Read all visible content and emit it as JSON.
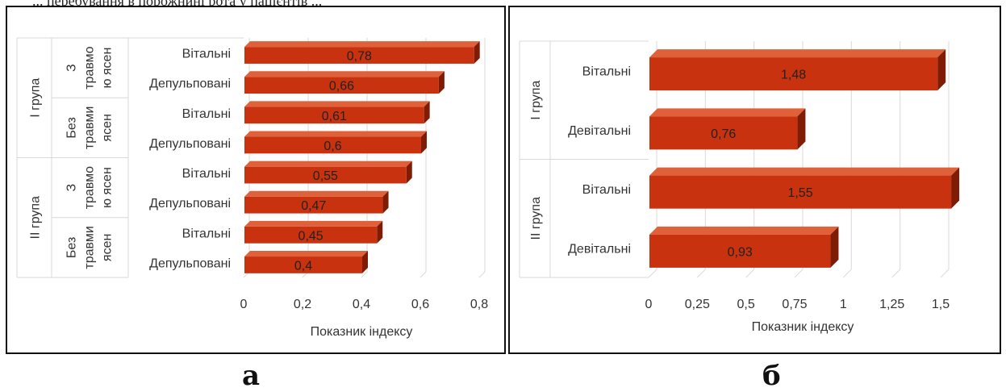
{
  "page": {
    "top_text": "... перебування в порожнині рота у пацієнтів ...",
    "panel_a_label": "а",
    "panel_b_label": "б"
  },
  "colors": {
    "bar_front": "#c8320e",
    "bar_top": "#e0603a",
    "bar_side": "#7e1c06",
    "grid": "#d9d9d9",
    "text": "#333333"
  },
  "chart_data": [
    {
      "id": "a",
      "type": "bar",
      "orientation": "horizontal",
      "title": "",
      "xlabel": "Показник індексу",
      "ylabel": "",
      "xlim": [
        0,
        0.8
      ],
      "xticks": [
        0,
        0.2,
        0.4,
        0.6,
        0.8
      ],
      "xtick_labels": [
        "0",
        "0,2",
        "0,4",
        "0,6",
        "0,8"
      ],
      "grid": true,
      "groups": [
        {
          "name": "I група",
          "subgroups": [
            {
              "name": "З травмою ясен",
              "lines": [
                "З",
                "травмо",
                "ю ясен"
              ],
              "bars": [
                {
                  "category": "Вітальні",
                  "value": 0.78,
                  "label": "0,78"
                },
                {
                  "category": "Депульповані",
                  "value": 0.66,
                  "label": "0,66"
                }
              ]
            },
            {
              "name": "Без травми ясен",
              "lines": [
                "Без",
                "травми",
                "ясен"
              ],
              "bars": [
                {
                  "category": "Вітальні",
                  "value": 0.61,
                  "label": "0,61"
                },
                {
                  "category": "Депульповані",
                  "value": 0.6,
                  "label": "0,6"
                }
              ]
            }
          ]
        },
        {
          "name": "II група",
          "subgroups": [
            {
              "name": "З травмою ясен",
              "lines": [
                "З",
                "травмо",
                "ю ясен"
              ],
              "bars": [
                {
                  "category": "Вітальні",
                  "value": 0.55,
                  "label": "0,55"
                },
                {
                  "category": "Депульповані",
                  "value": 0.47,
                  "label": "0,47"
                }
              ]
            },
            {
              "name": "Без травми ясен",
              "lines": [
                "Без",
                "травми",
                "ясен"
              ],
              "bars": [
                {
                  "category": "Вітальні",
                  "value": 0.45,
                  "label": "0,45"
                },
                {
                  "category": "Депульповані",
                  "value": 0.4,
                  "label": "0,4"
                }
              ]
            }
          ]
        }
      ]
    },
    {
      "id": "b",
      "type": "bar",
      "orientation": "horizontal",
      "title": "",
      "xlabel": "Показник індексу",
      "ylabel": "",
      "xlim": [
        0,
        1.5
      ],
      "xticks": [
        0,
        0.25,
        0.5,
        0.75,
        1,
        1.25,
        1.5
      ],
      "xtick_labels": [
        "0",
        "0,25",
        "0,5",
        "0,75",
        "1",
        "1,25",
        "1,5"
      ],
      "grid": true,
      "groups": [
        {
          "name": "I група",
          "bars": [
            {
              "category": "Вітальні",
              "value": 1.48,
              "label": "1,48"
            },
            {
              "category": "Девітальні",
              "value": 0.76,
              "label": "0,76"
            }
          ]
        },
        {
          "name": "II група",
          "bars": [
            {
              "category": "Вітальні",
              "value": 1.55,
              "label": "1,55"
            },
            {
              "category": "Девітальні",
              "value": 0.93,
              "label": "0,93"
            }
          ]
        }
      ]
    }
  ]
}
